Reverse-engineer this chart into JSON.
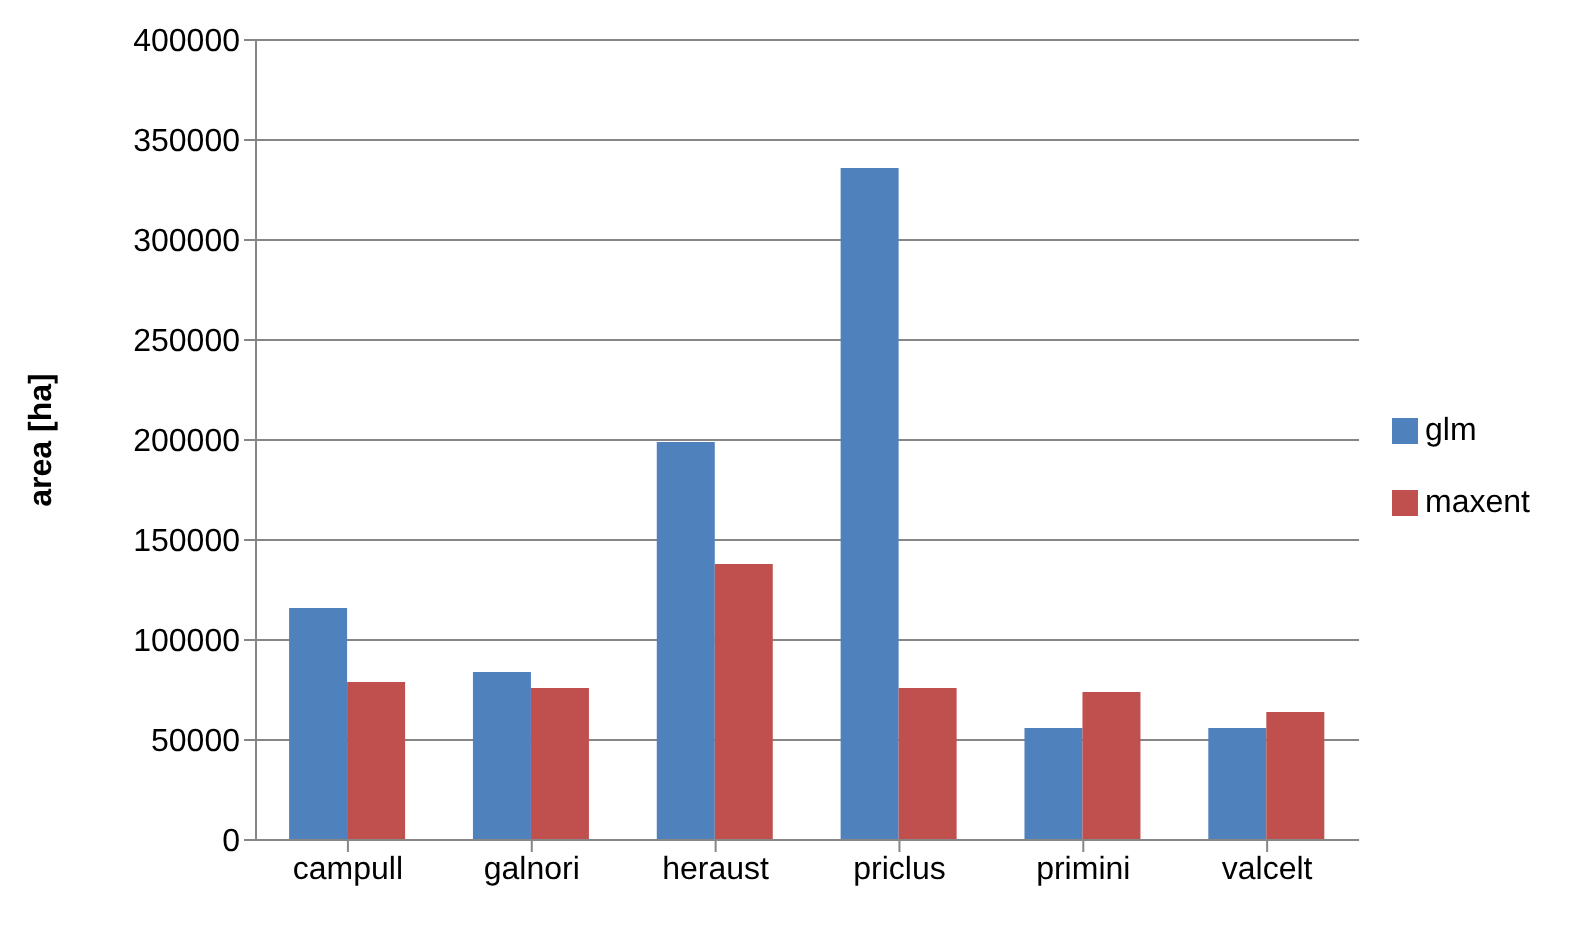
{
  "chart_data": {
    "type": "bar",
    "ylabel": "area [ha]",
    "categories": [
      "campull",
      "galnori",
      "heraust",
      "priclus",
      "primini",
      "valcelt"
    ],
    "series": [
      {
        "name": "glm",
        "color": "#4f81bd",
        "values": [
          116000,
          84000,
          199000,
          336000,
          56000,
          56000
        ]
      },
      {
        "name": "maxent",
        "color": "#c0504d",
        "values": [
          79000,
          76000,
          138000,
          76000,
          74000,
          64000
        ]
      }
    ],
    "ylim": [
      0,
      400000
    ],
    "yticks": [
      0,
      50000,
      100000,
      150000,
      200000,
      250000,
      300000,
      350000,
      400000
    ],
    "grid": "y",
    "legend": "right"
  }
}
